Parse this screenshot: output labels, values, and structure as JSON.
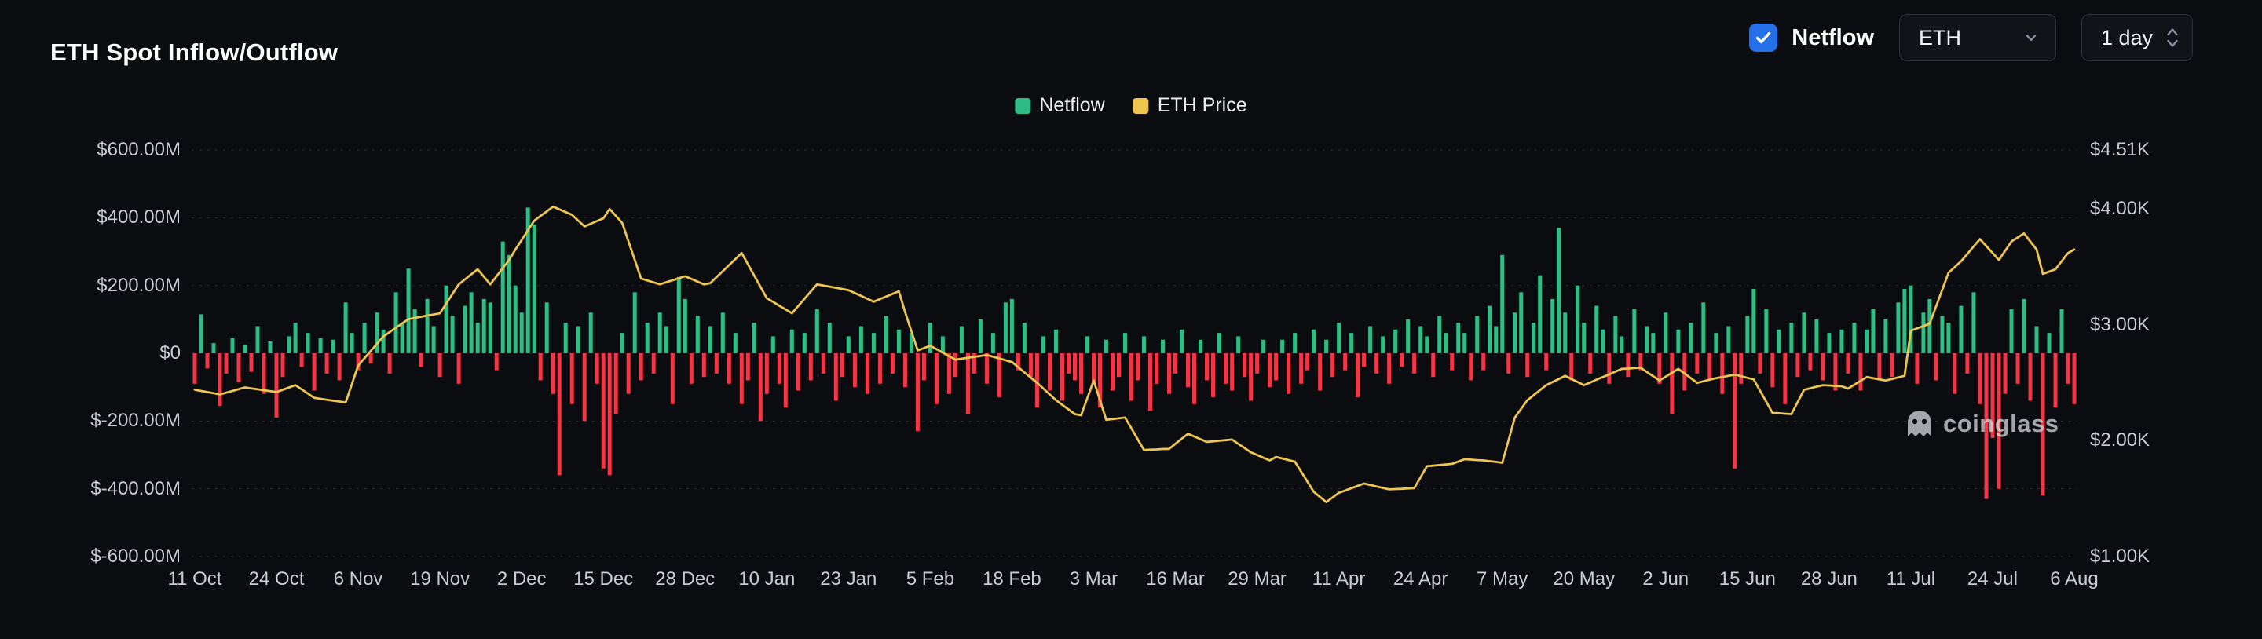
{
  "colors": {
    "background": "#0b0c0f",
    "accent_blue": "#2470eb",
    "positive_green": "#2ebd85",
    "negative_red": "#f23645",
    "price_yellow": "#eec64f",
    "axis_text": "#c8ccd3",
    "grid_line": "rgba(255,255,255,0.13)"
  },
  "header": {
    "title": "ETH Spot Inflow/Outflow",
    "netflow_toggle": {
      "label": "Netflow",
      "checked": true
    },
    "symbol_select": {
      "value": "ETH"
    },
    "interval_select": {
      "value": "1 day"
    }
  },
  "legend": [
    {
      "label": "Netflow",
      "color": "#2ebd85"
    },
    {
      "label": "ETH Price",
      "color": "#eec64f"
    }
  ],
  "watermark": {
    "text": "coinglass"
  },
  "chart_data": {
    "type": "combo",
    "x_unit": "1 day",
    "x_tick_step": 13,
    "x_tick_labels": [
      "11 Oct",
      "24 Oct",
      "6 Nov",
      "19 Nov",
      "2 Dec",
      "15 Dec",
      "28 Dec",
      "10 Jan",
      "23 Jan",
      "5 Feb",
      "18 Feb",
      "3 Mar",
      "16 Mar",
      "29 Mar",
      "11 Apr",
      "24 Apr",
      "7 May",
      "20 May",
      "2 Jun",
      "15 Jun",
      "28 Jun",
      "11 Jul",
      "24 Jul",
      "6 Aug"
    ],
    "left_axis": {
      "unit": "USD millions",
      "min": -600,
      "max": 600,
      "ticks": [
        "$600.00M",
        "$400.00M",
        "$200.00M",
        "$0",
        "$-200.00M",
        "$-400.00M",
        "$-600.00M"
      ]
    },
    "right_axis": {
      "unit": "USD",
      "min": 1000,
      "max": 4510,
      "ticks": [
        "$4.51K",
        "$4.00K",
        "$3.00K",
        "$2.00K",
        "$1.00K"
      ],
      "values": [
        4510,
        4000,
        3000,
        2000,
        1000
      ]
    },
    "series": [
      {
        "name": "Netflow",
        "type": "bar",
        "unit": "USD millions",
        "color_positive": "#2ebd85",
        "color_negative": "#f23645",
        "values": [
          -90,
          115,
          -45,
          30,
          -155,
          -60,
          45,
          -85,
          25,
          -55,
          80,
          -120,
          35,
          -190,
          -70,
          50,
          90,
          -40,
          60,
          -110,
          45,
          -60,
          40,
          -80,
          150,
          60,
          -50,
          90,
          -30,
          120,
          70,
          -60,
          180,
          90,
          250,
          130,
          -40,
          160,
          80,
          -70,
          200,
          110,
          -90,
          140,
          180,
          90,
          160,
          150,
          -50,
          330,
          290,
          200,
          120,
          430,
          380,
          -80,
          150,
          -120,
          -360,
          90,
          -150,
          80,
          -200,
          120,
          -90,
          -340,
          -360,
          -180,
          60,
          -120,
          180,
          -80,
          90,
          -60,
          120,
          80,
          -150,
          225,
          160,
          -90,
          110,
          -70,
          80,
          -60,
          120,
          -90,
          60,
          -150,
          -80,
          90,
          -200,
          -120,
          50,
          -90,
          -160,
          70,
          -110,
          60,
          -80,
          130,
          -60,
          90,
          -140,
          -70,
          50,
          -100,
          80,
          -120,
          60,
          -90,
          110,
          -60,
          70,
          -100,
          60,
          -230,
          -80,
          90,
          -150,
          50,
          -120,
          -70,
          80,
          -180,
          -60,
          100,
          -90,
          60,
          -130,
          150,
          160,
          -50,
          90,
          -70,
          -160,
          50,
          -110,
          70,
          -140,
          -60,
          -80,
          -120,
          50,
          -90,
          -160,
          40,
          -110,
          -70,
          60,
          -140,
          -80,
          50,
          -170,
          -90,
          40,
          -120,
          -60,
          70,
          -100,
          -150,
          40,
          -80,
          -130,
          60,
          -90,
          -110,
          50,
          -70,
          -140,
          -60,
          40,
          -100,
          -80,
          40,
          -120,
          60,
          -90,
          -50,
          70,
          -110,
          40,
          -70,
          90,
          -50,
          60,
          -130,
          -40,
          80,
          -60,
          50,
          -90,
          70,
          -40,
          100,
          -60,
          80,
          50,
          -70,
          110,
          60,
          -50,
          90,
          60,
          -80,
          110,
          -50,
          140,
          80,
          290,
          -60,
          120,
          180,
          -70,
          90,
          230,
          -50,
          160,
          370,
          120,
          -80,
          200,
          90,
          -60,
          140,
          70,
          -90,
          110,
          50,
          -70,
          130,
          -50,
          80,
          60,
          -90,
          120,
          -180,
          70,
          -110,
          90,
          -60,
          150,
          -80,
          60,
          -120,
          80,
          -340,
          -90,
          110,
          190,
          -60,
          130,
          -100,
          70,
          -150,
          90,
          -70,
          120,
          -50,
          100,
          -80,
          60,
          -110,
          70,
          -60,
          90,
          -110,
          70,
          130,
          -80,
          100,
          -70,
          150,
          190,
          200,
          -90,
          120,
          160,
          -80,
          110,
          90,
          -120,
          140,
          -60,
          180,
          -150,
          -430,
          -250,
          -400,
          -120,
          130,
          -90,
          160,
          -140,
          80,
          -420,
          60,
          -160,
          130,
          -90,
          -150
        ]
      },
      {
        "name": "ETH Price",
        "type": "line",
        "unit": "USD",
        "color": "#eec64f",
        "values": [
          2440,
          2430,
          2420,
          2410,
          2400,
          2415,
          2430,
          2445,
          2460,
          2452,
          2444,
          2436,
          2428,
          2420,
          2440,
          2460,
          2480,
          2443,
          2407,
          2370,
          2362,
          2354,
          2346,
          2338,
          2330,
          2490,
          2650,
          2713,
          2775,
          2838,
          2900,
          2938,
          2975,
          3013,
          3050,
          3060,
          3070,
          3080,
          3090,
          3100,
          3183,
          3267,
          3350,
          3393,
          3437,
          3480,
          3415,
          3350,
          3420,
          3490,
          3560,
          3650,
          3733,
          3817,
          3900,
          3940,
          3980,
          4020,
          3997,
          3973,
          3950,
          3900,
          3850,
          3873,
          3897,
          3920,
          4000,
          3940,
          3880,
          3720,
          3560,
          3400,
          3383,
          3367,
          3350,
          3368,
          3385,
          3403,
          3420,
          3397,
          3373,
          3350,
          3360,
          3412,
          3464,
          3516,
          3568,
          3620,
          3523,
          3425,
          3328,
          3230,
          3198,
          3165,
          3133,
          3100,
          3163,
          3225,
          3288,
          3350,
          3340,
          3330,
          3320,
          3310,
          3300,
          3275,
          3250,
          3225,
          3200,
          3223,
          3245,
          3268,
          3290,
          3110,
          2945,
          2780,
          2800,
          2820,
          2790,
          2760,
          2730,
          2700,
          2708,
          2716,
          2724,
          2732,
          2740,
          2725,
          2710,
          2695,
          2680,
          2635,
          2590,
          2545,
          2500,
          2450,
          2400,
          2350,
          2310,
          2270,
          2230,
          2220,
          2370,
          2520,
          2350,
          2180,
          2187,
          2193,
          2200,
          2107,
          2013,
          1920,
          1923,
          1925,
          1928,
          1930,
          1973,
          2017,
          2060,
          2037,
          2013,
          1990,
          1995,
          2000,
          2005,
          2010,
          1973,
          1937,
          1900,
          1877,
          1853,
          1830,
          1860,
          1847,
          1833,
          1820,
          1733,
          1647,
          1560,
          1515,
          1470,
          1510,
          1550,
          1570,
          1590,
          1610,
          1630,
          1618,
          1605,
          1593,
          1580,
          1583,
          1585,
          1588,
          1590,
          1685,
          1780,
          1785,
          1790,
          1795,
          1800,
          1820,
          1840,
          1837,
          1833,
          1830,
          1823,
          1817,
          1810,
          2005,
          2200,
          2275,
          2350,
          2393,
          2437,
          2480,
          2507,
          2533,
          2560,
          2533,
          2507,
          2480,
          2503,
          2527,
          2550,
          2573,
          2597,
          2620,
          2623,
          2627,
          2630,
          2593,
          2557,
          2520,
          2553,
          2587,
          2620,
          2580,
          2540,
          2500,
          2513,
          2527,
          2540,
          2550,
          2560,
          2570,
          2557,
          2543,
          2530,
          2433,
          2337,
          2240,
          2237,
          2233,
          2230,
          2335,
          2440,
          2453,
          2467,
          2480,
          2477,
          2473,
          2470,
          2450,
          2483,
          2517,
          2550,
          2540,
          2530,
          2520,
          2533,
          2547,
          2560,
          2950,
          2970,
          2990,
          3010,
          3157,
          3303,
          3450,
          3500,
          3550,
          3613,
          3677,
          3740,
          3680,
          3620,
          3560,
          3640,
          3720,
          3755,
          3790,
          3720,
          3650,
          3440,
          3460,
          3480,
          3550,
          3620,
          3650
        ]
      }
    ]
  }
}
